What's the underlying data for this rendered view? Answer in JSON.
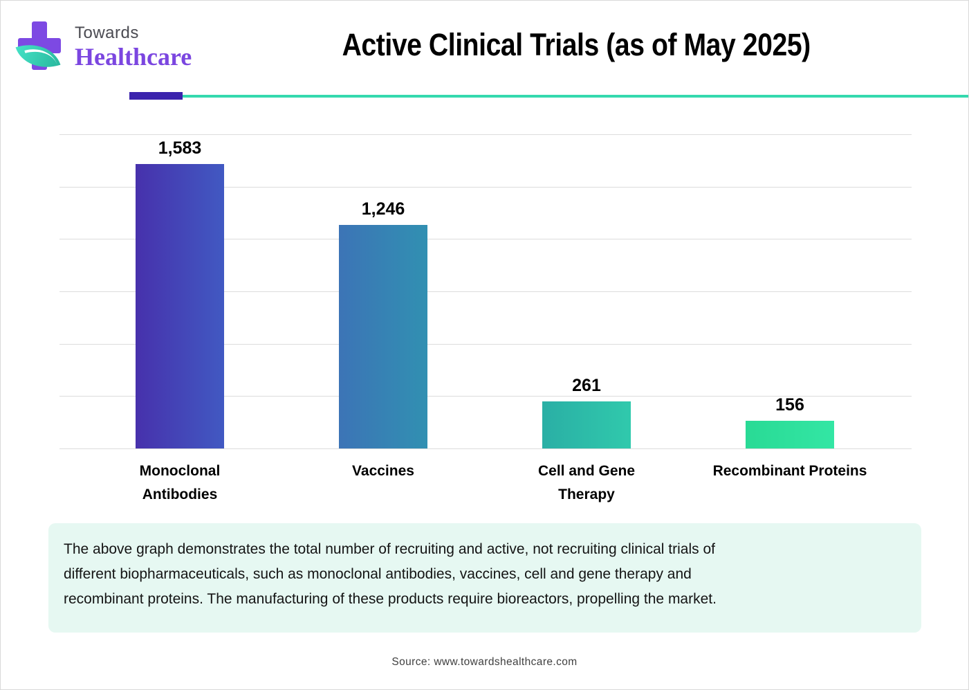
{
  "logo": {
    "towards": "Towards",
    "healthcare": "Healthcare",
    "cross_color": "#7d49e3",
    "leaf_color_from": "#45e2c6",
    "leaf_color_to": "#28b89e",
    "towards_color": "#4b4b52",
    "healthcare_color": "#7b46e0"
  },
  "header": {
    "title": "Active Clinical Trials (as of May 2025)",
    "divider_purple_color": "#3b23ad",
    "divider_teal_color": "#35d9ae"
  },
  "chart_data": {
    "type": "bar",
    "title": "Active Clinical Trials (as of May 2025)",
    "categories": [
      "Monoclonal Antibodies",
      "Vaccines",
      "Cell and Gene Therapy",
      "Recombinant Proteins"
    ],
    "category_lines": [
      [
        "Monoclonal",
        "Antibodies"
      ],
      [
        "Vaccines"
      ],
      [
        "Cell and Gene",
        "Therapy"
      ],
      [
        "Recombinant Proteins"
      ]
    ],
    "values": [
      1583,
      1246,
      261,
      156
    ],
    "value_labels": [
      "1,583",
      "1,246",
      "261",
      "156"
    ],
    "bar_gradients": [
      [
        "#4731ac",
        "#4159c2"
      ],
      [
        "#3c74b6",
        "#3190b2"
      ],
      [
        "#2aafa5",
        "#30c9ac"
      ],
      [
        "#29da95",
        "#33e6a4"
      ]
    ],
    "xlabel": "",
    "ylabel": "",
    "ylim": [
      0,
      1750
    ],
    "gridline_count": 7,
    "grid": true,
    "gridline_color": "#dcdcdc",
    "legend": false
  },
  "note": {
    "bg_color": "#e6f8f2",
    "lines": [
      "The above graph demonstrates the total number of recruiting and active, not recruiting clinical trials of",
      "different biopharmaceuticals, such as monoclonal antibodies, vaccines, cell and gene therapy and",
      "recombinant proteins. The manufacturing of these products require bioreactors, propelling the market."
    ]
  },
  "source": {
    "text": "Source: www.towardshealthcare.com"
  }
}
